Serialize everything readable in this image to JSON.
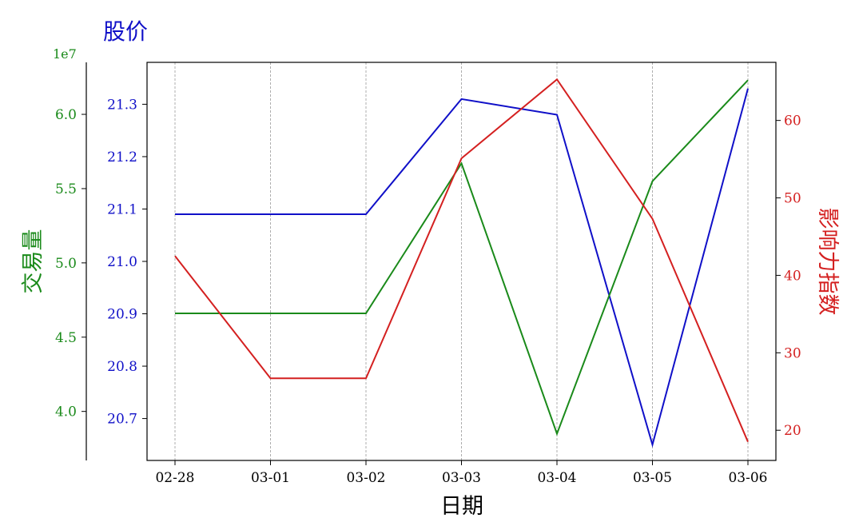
{
  "chart_data": {
    "type": "line",
    "categories": [
      "02-28",
      "03-01",
      "03-02",
      "03-03",
      "03-04",
      "03-05",
      "03-06"
    ],
    "xlabel": "日期",
    "grid": "vertical dashed",
    "axes": {
      "price": {
        "label": "股价",
        "color": "#1010c8",
        "ticks": [
          "20.7",
          "20.8",
          "20.9",
          "21.0",
          "21.1",
          "21.2",
          "21.3"
        ],
        "ylim": [
          20.62,
          21.38
        ]
      },
      "volume": {
        "label": "交易量",
        "color": "#1a8a1a",
        "offset_label": "1e7",
        "ticks": [
          "4.0",
          "4.5",
          "5.0",
          "5.5",
          "6.0"
        ],
        "ylim": [
          3.67,
          6.35
        ]
      },
      "influence": {
        "label": "影响力指数",
        "color": "#d42020",
        "ticks": [
          "20",
          "30",
          "40",
          "50",
          "60"
        ],
        "ylim": [
          16.1,
          67.5
        ]
      }
    },
    "series": [
      {
        "axis": "price",
        "color": "#1010c8",
        "values": [
          21.09,
          21.09,
          21.09,
          21.31,
          21.28,
          20.65,
          21.33
        ]
      },
      {
        "axis": "volume",
        "color": "#1a8a1a",
        "values": [
          4.66,
          4.66,
          4.66,
          5.67,
          3.85,
          5.55,
          6.23
        ]
      },
      {
        "axis": "influence",
        "color": "#d42020",
        "values": [
          42.5,
          26.7,
          26.7,
          55.1,
          65.3,
          47.3,
          18.5
        ]
      }
    ]
  }
}
